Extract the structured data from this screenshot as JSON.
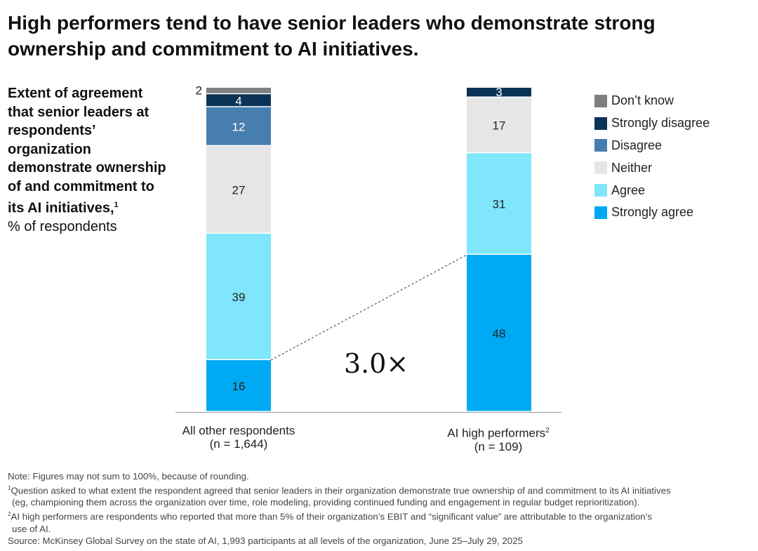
{
  "title": "High performers tend to have senior leaders who demonstrate strong ownership and commitment to AI initiatives.",
  "subtitle": "Extent of agreement that senior leaders at respondents’ organization demonstrate ownership of and commitment to its AI initiatives,",
  "subtitle_footnote": "1",
  "unit": "% of respondents",
  "multiplier": "3.0×",
  "colors": {
    "Don’t know": "#7f7f7f",
    "Strongly disagree": "#0b3356",
    "Disagree": "#477eb0",
    "Neither": "#e6e6e6",
    "Agree": "#7fe6fb",
    "Strongly agree": "#00a9f4"
  },
  "chart_data": {
    "type": "bar",
    "stacked": true,
    "title": "High performers tend to have senior leaders who demonstrate strong ownership and commitment to AI initiatives.",
    "ylabel": "% of respondents",
    "categories": [
      "All other respondents",
      "AI high performers"
    ],
    "category_sublabels": [
      "(n = 1,644)",
      "(n = 109)"
    ],
    "category_footnotes": [
      "",
      "2"
    ],
    "legend_position": "right",
    "series": [
      {
        "name": "Strongly agree",
        "values": [
          16,
          48
        ]
      },
      {
        "name": "Agree",
        "values": [
          39,
          31
        ]
      },
      {
        "name": "Neither",
        "values": [
          27,
          17
        ]
      },
      {
        "name": "Disagree",
        "values": [
          12,
          0
        ]
      },
      {
        "name": "Strongly disagree",
        "values": [
          4,
          3
        ]
      },
      {
        "name": "Don’t know",
        "values": [
          2,
          0
        ]
      }
    ],
    "legend": [
      "Don’t know",
      "Strongly disagree",
      "Disagree",
      "Neither",
      "Agree",
      "Strongly agree"
    ]
  },
  "notes": {
    "note": "Note: Figures may not sum to 100%, because of rounding.",
    "fn1_mark": "1",
    "fn1": "Question asked to what extent the respondent agreed that senior leaders in their organization demonstrate true ownership of and commitment to its AI initiatives",
    "fn1_cont": "(eg, championing them across the organization over time, role modeling, providing continued funding and engagement in regular budget reprioritization).",
    "fn2_mark": "2",
    "fn2": "AI high performers are respondents who reported that more than 5% of their organization’s EBIT and “significant value” are attributable to the organization’s",
    "fn2_cont": "use of AI.",
    "source": "Source: McKinsey Global Survey on the state of AI, 1,993 participants at all levels of the organization, June 25–July 29, 2025"
  }
}
